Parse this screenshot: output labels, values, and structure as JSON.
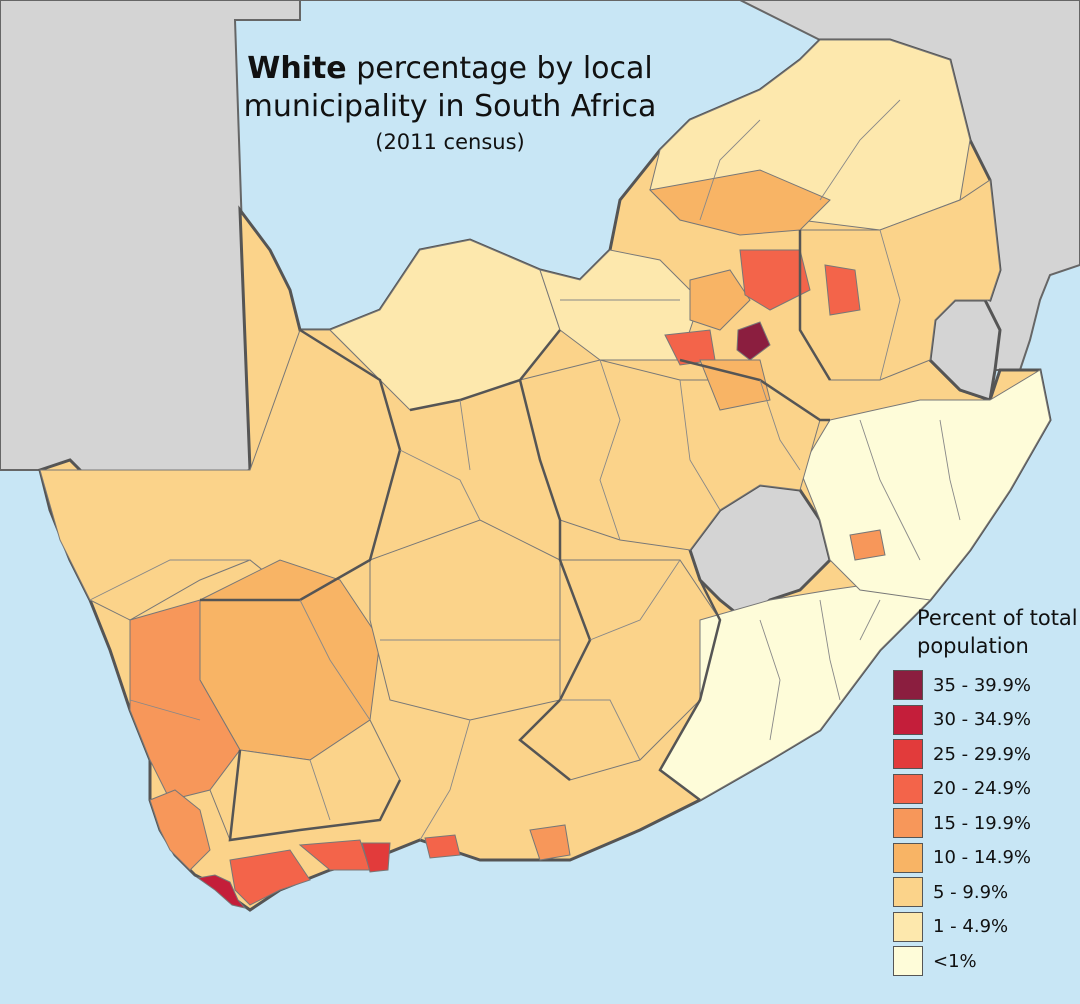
{
  "title": {
    "bold": "White",
    "rest_line1": " percentage by local",
    "line2": "municipality in South Africa",
    "subtitle": "(2011 census)"
  },
  "legend": {
    "title": "Percent of total population",
    "items": [
      {
        "label": "35 - 39.9%",
        "color": "#8b1e3f"
      },
      {
        "label": "30 - 34.9%",
        "color": "#c41e3a"
      },
      {
        "label": "25 - 29.9%",
        "color": "#e23b3b"
      },
      {
        "label": "20 - 24.9%",
        "color": "#f3644a"
      },
      {
        "label": "15 - 19.9%",
        "color": "#f7975a"
      },
      {
        "label": "10 - 14.9%",
        "color": "#f8b465"
      },
      {
        "label": "5 - 9.9%",
        "color": "#fbd38a"
      },
      {
        "label": "1 - 4.9%",
        "color": "#fde8ad"
      },
      {
        "label": "<1%",
        "color": "#fefcd9"
      }
    ]
  },
  "colors": {
    "ocean": "#c8e6f5",
    "neighbor_land": "#d4d4d4",
    "border_major": "#555555",
    "border_minor": "#777777"
  }
}
